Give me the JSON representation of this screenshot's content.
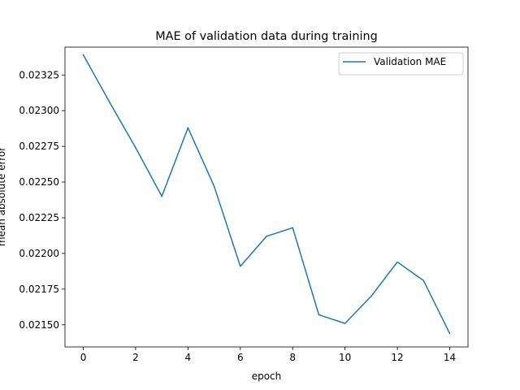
{
  "chart_data": {
    "type": "line",
    "title": "MAE of validation data during training",
    "xlabel": "epoch",
    "ylabel": "mean absolute error",
    "xlim": [
      -0.7,
      14.7
    ],
    "ylim": [
      0.021345,
      0.023445
    ],
    "x_ticks": [
      0,
      2,
      4,
      6,
      8,
      10,
      12,
      14
    ],
    "y_ticks": [
      0.0215,
      0.02175,
      0.022,
      0.02225,
      0.0225,
      0.02275,
      0.023,
      0.02325
    ],
    "y_tick_labels": [
      "0.02150",
      "0.02175",
      "0.02200",
      "0.02225",
      "0.02250",
      "0.02275",
      "0.02300",
      "0.02325"
    ],
    "grid": false,
    "legend_position": "top-right",
    "series": [
      {
        "name": "Validation MAE",
        "color": "#1f77b4",
        "x": [
          0,
          1,
          2,
          3,
          4,
          5,
          6,
          7,
          8,
          9,
          10,
          11,
          12,
          13,
          14
        ],
        "y": [
          0.02339,
          0.02306,
          0.02274,
          0.0224,
          0.02288,
          0.02247,
          0.02191,
          0.02212,
          0.02218,
          0.02157,
          0.02151,
          0.0217,
          0.02194,
          0.02181,
          0.02144
        ]
      }
    ]
  }
}
